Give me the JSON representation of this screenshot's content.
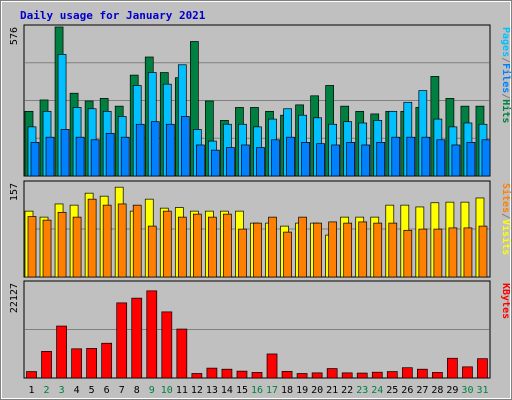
{
  "title": "Daily usage for January 2021",
  "colors": {
    "background": "#c0c0c0",
    "plot_bg": "#c0c0c0",
    "title": "#0000cc",
    "hits": "#008040",
    "files": "#00c0ff",
    "pages": "#0080ff",
    "visits": "#ffff00",
    "sites": "#ff8000",
    "kbytes": "#ff0000",
    "weekend_label": "#008040"
  },
  "chart_data": {
    "type": "bar",
    "days": [
      1,
      2,
      3,
      4,
      5,
      6,
      7,
      8,
      9,
      10,
      11,
      12,
      13,
      14,
      15,
      16,
      17,
      18,
      19,
      20,
      21,
      22,
      23,
      24,
      25,
      26,
      27,
      28,
      29,
      30,
      31
    ],
    "weekend_days": [
      2,
      3,
      9,
      10,
      16,
      17,
      23,
      24,
      30,
      31
    ],
    "panels": [
      {
        "name": "top",
        "max_label": "576",
        "ylim": [
          0,
          576
        ],
        "right_labels": [
          {
            "text": "Pages",
            "color": "#00c0ff"
          },
          {
            "text": "/",
            "color": "#808080"
          },
          {
            "text": "Files",
            "color": "#0080ff"
          },
          {
            "text": "/",
            "color": "#808080"
          },
          {
            "text": "Hits",
            "color": "#008040"
          }
        ],
        "series": [
          {
            "name": "Hits",
            "color": "#008040",
            "values": [
              250,
              294,
              576,
              320,
              290,
              300,
              270,
              390,
              460,
              400,
              380,
              520,
              290,
              215,
              265,
              265,
              250,
              235,
              275,
              310,
              350,
              270,
              250,
              240,
              250,
              250,
              265,
              385,
              300,
              270,
              270
            ]
          },
          {
            "name": "Files",
            "color": "#00c0ff",
            "values": [
              190,
              250,
              470,
              265,
              260,
              250,
              230,
              350,
              400,
              355,
              430,
              180,
              135,
              200,
              200,
              190,
              220,
              260,
              235,
              225,
              200,
              210,
              205,
              215,
              250,
              285,
              330,
              220,
              190,
              205,
              200
            ]
          },
          {
            "name": "Pages",
            "color": "#0080ff",
            "values": [
              130,
              150,
              180,
              150,
              140,
              165,
              150,
              200,
              210,
              200,
              230,
              120,
              100,
              110,
              120,
              110,
              140,
              150,
              130,
              125,
              120,
              130,
              120,
              130,
              150,
              150,
              150,
              140,
              120,
              130,
              140
            ]
          }
        ]
      },
      {
        "name": "middle",
        "max_label": "157",
        "ylim": [
          0,
          157
        ],
        "right_labels": [
          {
            "text": "Sites",
            "color": "#ff8000"
          },
          {
            "text": "/",
            "color": "#808080"
          },
          {
            "text": "Visits",
            "color": "#ffff00"
          }
        ],
        "series": [
          {
            "name": "Visits",
            "color": "#ffff00",
            "values": [
              110,
              100,
              122,
              120,
              140,
              135,
              150,
              110,
              130,
              115,
              116,
              110,
              110,
              110,
              110,
              90,
              90,
              85,
              90,
              90,
              70,
              100,
              100,
              100,
              120,
              120,
              117,
              124,
              125,
              125,
              132
            ]
          },
          {
            "name": "Sites",
            "color": "#ff8000",
            "values": [
              101,
              95,
              108,
              100,
              130,
              120,
              122,
              120,
              85,
              110,
              100,
              105,
              100,
              105,
              80,
              90,
              100,
              75,
              100,
              90,
              92,
              90,
              92,
              90,
              90,
              78,
              80,
              80,
              82,
              82,
              85
            ]
          }
        ]
      },
      {
        "name": "bottom",
        "max_label": "22127",
        "ylim": [
          0,
          22127
        ],
        "right_labels": [
          {
            "text": "KBytes",
            "color": "#ff0000"
          }
        ],
        "series": [
          {
            "name": "KBytes",
            "color": "#ff0000",
            "values": [
              1500,
              6200,
              12100,
              6800,
              6900,
              8100,
              17500,
              18600,
              20300,
              15400,
              11400,
              1050,
              2300,
              2050,
              1600,
              1300,
              5600,
              1550,
              1050,
              1200,
              2200,
              1200,
              1150,
              1350,
              1500,
              2400,
              2050,
              1300,
              4600,
              2600,
              4500
            ]
          }
        ]
      }
    ]
  }
}
